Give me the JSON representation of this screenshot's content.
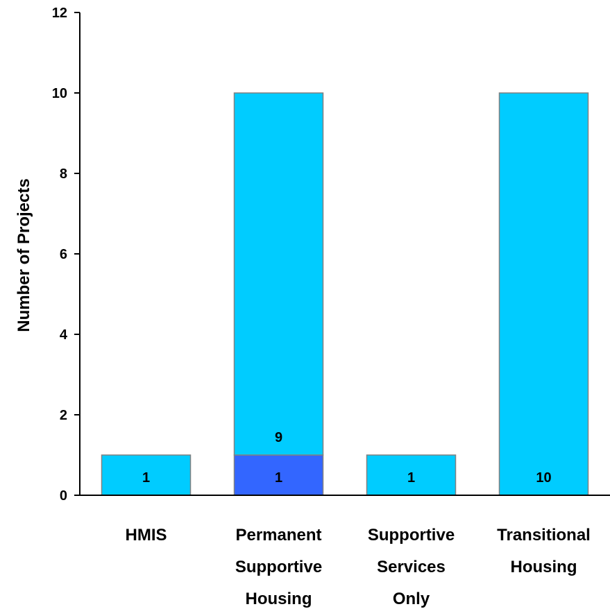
{
  "chart_data": {
    "type": "bar",
    "stacked": true,
    "categories": [
      [
        "HMIS"
      ],
      [
        "Permanent",
        "Supportive",
        "Housing"
      ],
      [
        "Supportive",
        "Services",
        "Only"
      ],
      [
        "Transitional",
        "Housing"
      ]
    ],
    "series": [
      {
        "values": [
          1,
          1,
          1,
          10
        ],
        "color": "#00CCFF"
      },
      {
        "values": [
          0,
          9,
          0,
          0
        ],
        "color": "#00CCFF"
      }
    ],
    "segment_colors": [
      [
        "#00CCFF"
      ],
      [
        "#3366FF",
        "#00CCFF"
      ],
      [
        "#00CCFF"
      ],
      [
        "#00CCFF"
      ]
    ],
    "ylabel": "Number of Projects",
    "xlabel": "",
    "title": "",
    "ylim": [
      0,
      12
    ],
    "yticks": [
      0,
      2,
      4,
      6,
      8,
      10,
      12
    ],
    "grid": false,
    "legend": "none"
  }
}
